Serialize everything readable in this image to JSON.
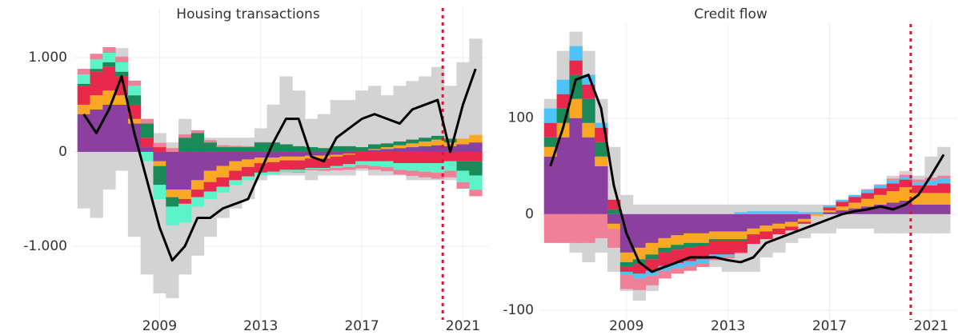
{
  "chart_data": [
    {
      "type": "stacked-contribution",
      "title": "Housing transactions",
      "x": [
        2006,
        2006.5,
        2007,
        2007.5,
        2008,
        2008.5,
        2009,
        2009.5,
        2010,
        2010.5,
        2011,
        2011.5,
        2012,
        2012.5,
        2013,
        2013.5,
        2014,
        2014.5,
        2015,
        2015.5,
        2016,
        2016.5,
        2017,
        2017.5,
        2018,
        2018.5,
        2019,
        2019.5,
        2020,
        2020.5,
        2021,
        2021.5
      ],
      "xlim": [
        2005.6,
        2022.0
      ],
      "xticks": [
        2009,
        2013,
        2017,
        2021
      ],
      "ylim": [
        -1780,
        1525
      ],
      "yticks": [
        {
          "value": -1000,
          "label": "-1.000"
        },
        0,
        {
          "value": 1000,
          "label": "1.000"
        }
      ],
      "grid": true,
      "vline": {
        "x": 2020.2,
        "color": "#dc143c"
      },
      "band": {
        "color": "#d3d3d3",
        "low": [
          -600,
          -700,
          -400,
          -200,
          -900,
          -1300,
          -1500,
          -1550,
          -1300,
          -1100,
          -900,
          -700,
          -600,
          -500,
          -300,
          -250,
          -250,
          -250,
          -300,
          -250,
          -250,
          -250,
          -200,
          -250,
          -250,
          -250,
          -300,
          -300,
          -300,
          -300,
          -300,
          -300
        ],
        "high": [
          800,
          800,
          1000,
          1100,
          500,
          300,
          200,
          100,
          350,
          200,
          150,
          150,
          150,
          150,
          250,
          500,
          800,
          650,
          350,
          400,
          550,
          550,
          650,
          700,
          600,
          700,
          750,
          800,
          900,
          700,
          950,
          1200
        ]
      },
      "series": [
        {
          "color": "#8b3f9e",
          "values": [
            400,
            450,
            500,
            500,
            300,
            50,
            -100,
            -400,
            -400,
            -300,
            -200,
            -150,
            -100,
            -80,
            -60,
            -60,
            -50,
            -50,
            -40,
            -40,
            -30,
            -20,
            0,
            20,
            30,
            40,
            50,
            60,
            70,
            60,
            80,
            100
          ]
        },
        {
          "color": "#f9a825",
          "values": [
            100,
            150,
            150,
            100,
            50,
            0,
            -50,
            -80,
            -100,
            -100,
            -120,
            -120,
            -100,
            -80,
            -60,
            -50,
            -40,
            -40,
            -30,
            -30,
            -20,
            -10,
            0,
            10,
            20,
            30,
            40,
            50,
            60,
            40,
            60,
            80
          ]
        },
        {
          "color": "#e8294c",
          "values": [
            200,
            250,
            250,
            200,
            150,
            100,
            50,
            0,
            -50,
            -80,
            -100,
            -100,
            -100,
            -100,
            -100,
            -100,
            -100,
            -100,
            -100,
            -100,
            -100,
            -100,
            -100,
            -100,
            -100,
            -120,
            -120,
            -120,
            -120,
            -100,
            -100,
            -100
          ]
        },
        {
          "color": "#1a8a5a",
          "values": [
            20,
            30,
            50,
            50,
            100,
            150,
            -200,
            -100,
            150,
            200,
            100,
            50,
            50,
            50,
            100,
            100,
            80,
            60,
            50,
            40,
            60,
            60,
            50,
            50,
            40,
            40,
            40,
            40,
            40,
            40,
            -100,
            -150
          ]
        },
        {
          "color": "#5ef2c8",
          "values": [
            100,
            100,
            100,
            100,
            100,
            -100,
            -150,
            -200,
            -200,
            -100,
            -80,
            -60,
            -50,
            -40,
            -30,
            -30,
            -20,
            -20,
            -10,
            -10,
            -20,
            -30,
            -40,
            -50,
            -60,
            -70,
            -80,
            -90,
            -100,
            -100,
            -120,
            -150
          ]
        },
        {
          "color": "#f08098",
          "values": [
            60,
            60,
            60,
            60,
            55,
            50,
            45,
            40,
            35,
            30,
            25,
            20,
            15,
            10,
            5,
            0,
            -5,
            -10,
            -15,
            -20,
            -25,
            -30,
            -35,
            -40,
            -45,
            -50,
            -55,
            -60,
            -65,
            -70,
            -70,
            -70
          ]
        }
      ],
      "line": {
        "color": "#000000",
        "values": [
          400,
          200,
          450,
          800,
          200,
          -300,
          -800,
          -1150,
          -1000,
          -700,
          -700,
          -600,
          -550,
          -500,
          -200,
          100,
          350,
          350,
          -50,
          -100,
          150,
          250,
          350,
          400,
          350,
          300,
          450,
          500,
          550,
          0,
          500,
          880
        ]
      }
    },
    {
      "type": "stacked-contribution",
      "title": "Credit flow",
      "x": [
        2006,
        2006.5,
        2007,
        2007.5,
        2008,
        2008.5,
        2009,
        2009.5,
        2010,
        2010.5,
        2011,
        2011.5,
        2012,
        2012.5,
        2013,
        2013.5,
        2014,
        2014.5,
        2015,
        2015.5,
        2016,
        2016.5,
        2017,
        2017.5,
        2018,
        2018.5,
        2019,
        2019.5,
        2020,
        2020.5,
        2021,
        2021.5
      ],
      "xlim": [
        2005.6,
        2022.0
      ],
      "xticks": [
        2009,
        2013,
        2017,
        2021
      ],
      "ylim": [
        -110,
        198
      ],
      "yticks": [
        -100,
        0,
        100
      ],
      "grid": true,
      "vline": {
        "x": 2020.2,
        "color": "#dc143c"
      },
      "band": {
        "color": "#d3d3d3",
        "low": [
          -20,
          -30,
          -40,
          -50,
          -40,
          -60,
          -80,
          -90,
          -80,
          -65,
          -55,
          -55,
          -55,
          -55,
          -60,
          -60,
          -60,
          -45,
          -40,
          -30,
          -25,
          -20,
          -20,
          -15,
          -15,
          -15,
          -20,
          -20,
          -20,
          -20,
          -20,
          -20
        ],
        "high": [
          120,
          170,
          190,
          170,
          120,
          70,
          20,
          10,
          10,
          10,
          10,
          10,
          10,
          10,
          10,
          10,
          10,
          10,
          10,
          10,
          10,
          10,
          10,
          15,
          20,
          25,
          30,
          40,
          45,
          40,
          60,
          70
        ]
      },
      "series": [
        {
          "color": "#8b3f9e",
          "values": [
            60,
            80,
            100,
            80,
            50,
            -10,
            -40,
            -35,
            -30,
            -25,
            -22,
            -20,
            -20,
            -18,
            -18,
            -18,
            -15,
            -12,
            -10,
            -8,
            -5,
            0,
            2,
            4,
            6,
            8,
            10,
            12,
            14,
            10,
            10,
            10
          ]
        },
        {
          "color": "#f9a825",
          "values": [
            10,
            15,
            20,
            15,
            10,
            -5,
            -10,
            -12,
            -12,
            -10,
            -10,
            -10,
            -10,
            -8,
            -8,
            -8,
            -6,
            -6,
            -5,
            -5,
            -3,
            -2,
            2,
            4,
            6,
            8,
            10,
            12,
            14,
            12,
            12,
            12
          ]
        },
        {
          "color": "#1a8a5a",
          "values": [
            10,
            15,
            25,
            25,
            15,
            5,
            -5,
            -5,
            -5,
            -5,
            -5,
            -5,
            -3,
            -2,
            -2,
            -2,
            0,
            0,
            0,
            0,
            0,
            0,
            0,
            0,
            0,
            0,
            0,
            0,
            0,
            0,
            0,
            0
          ]
        },
        {
          "color": "#e8294c",
          "values": [
            15,
            15,
            15,
            15,
            15,
            10,
            -5,
            -10,
            -12,
            -14,
            -14,
            -14,
            -14,
            -14,
            -14,
            -12,
            -10,
            -8,
            -6,
            -4,
            -2,
            0,
            3,
            5,
            6,
            6,
            7,
            8,
            8,
            8,
            8,
            10
          ]
        },
        {
          "color": "#4fc3f7",
          "values": [
            15,
            15,
            15,
            10,
            5,
            0,
            -3,
            -5,
            -5,
            -5,
            -5,
            -5,
            -4,
            -3,
            -2,
            2,
            3,
            3,
            3,
            3,
            2,
            2,
            2,
            2,
            2,
            3,
            3,
            3,
            3,
            3,
            5,
            5
          ]
        },
        {
          "color": "#f08098",
          "values": [
            -30,
            -30,
            -30,
            -30,
            -25,
            -20,
            -15,
            -12,
            -10,
            -8,
            -6,
            -5,
            -4,
            -3,
            -2,
            -1,
            0,
            0,
            0,
            0,
            0,
            0,
            0,
            0,
            0,
            1,
            1,
            2,
            2,
            3,
            3,
            3
          ]
        }
      ],
      "line": {
        "color": "#000000",
        "values": [
          50,
          90,
          140,
          145,
          110,
          30,
          -20,
          -50,
          -60,
          -55,
          -50,
          -45,
          -45,
          -45,
          -48,
          -50,
          -45,
          -30,
          -25,
          -20,
          -15,
          -10,
          -5,
          0,
          3,
          5,
          8,
          5,
          10,
          20,
          40,
          62
        ]
      }
    }
  ]
}
